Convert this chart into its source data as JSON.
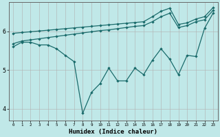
{
  "background_color": "#c0e8e8",
  "grid_color": "#b0b0b0",
  "line_color": "#1a6b6b",
  "x_min": -0.5,
  "x_max": 23.5,
  "y_min": 3.7,
  "y_max": 6.75,
  "xlabel": "Humidex (Indice chaleur)",
  "yticks": [
    4,
    5,
    6
  ],
  "xticks": [
    0,
    1,
    2,
    3,
    4,
    5,
    6,
    7,
    8,
    9,
    10,
    11,
    12,
    13,
    14,
    15,
    16,
    17,
    18,
    19,
    20,
    21,
    22,
    23
  ],
  "line1_x": [
    0,
    1,
    2,
    3,
    4,
    5,
    6,
    7,
    8,
    9,
    10,
    11,
    12,
    13,
    14,
    15,
    16,
    17,
    18,
    19,
    20,
    21,
    22,
    23
  ],
  "line1_y": [
    5.95,
    5.97,
    5.99,
    6.01,
    6.03,
    6.05,
    6.07,
    6.09,
    6.11,
    6.13,
    6.15,
    6.17,
    6.19,
    6.21,
    6.23,
    6.25,
    6.38,
    6.52,
    6.6,
    6.18,
    6.22,
    6.32,
    6.38,
    6.62
  ],
  "line2_x": [
    0,
    1,
    2,
    3,
    4,
    5,
    6,
    7,
    8,
    9,
    10,
    11,
    12,
    13,
    14,
    15,
    16,
    17,
    18,
    19,
    20,
    21,
    22,
    23
  ],
  "line2_y": [
    5.68,
    5.75,
    5.78,
    5.81,
    5.84,
    5.87,
    5.9,
    5.93,
    5.96,
    5.99,
    6.02,
    6.04,
    6.07,
    6.1,
    6.13,
    6.15,
    6.25,
    6.38,
    6.47,
    6.1,
    6.15,
    6.25,
    6.3,
    6.55
  ],
  "line3_x": [
    0,
    1,
    2,
    3,
    4,
    5,
    6,
    7,
    8,
    9,
    10,
    11,
    12,
    13,
    14,
    15,
    16,
    17,
    18,
    19,
    20,
    21,
    22,
    23
  ],
  "line3_y": [
    5.6,
    5.72,
    5.72,
    5.65,
    5.65,
    5.55,
    5.38,
    5.22,
    3.88,
    4.42,
    4.65,
    5.05,
    4.72,
    4.72,
    5.05,
    4.88,
    5.25,
    5.55,
    5.28,
    4.88,
    5.38,
    5.35,
    6.08,
    6.48
  ]
}
